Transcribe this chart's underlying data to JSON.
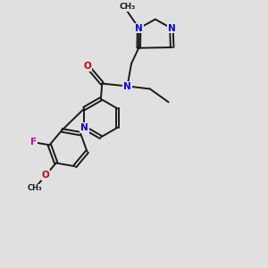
{
  "background_color": "#e0e0e0",
  "bond_color": "#1a1a1a",
  "bond_width": 1.4,
  "atom_colors": {
    "N": "#0000ee",
    "O": "#cc0000",
    "F": "#bb00bb",
    "C": "#1a1a1a"
  },
  "font_size": 7.5
}
